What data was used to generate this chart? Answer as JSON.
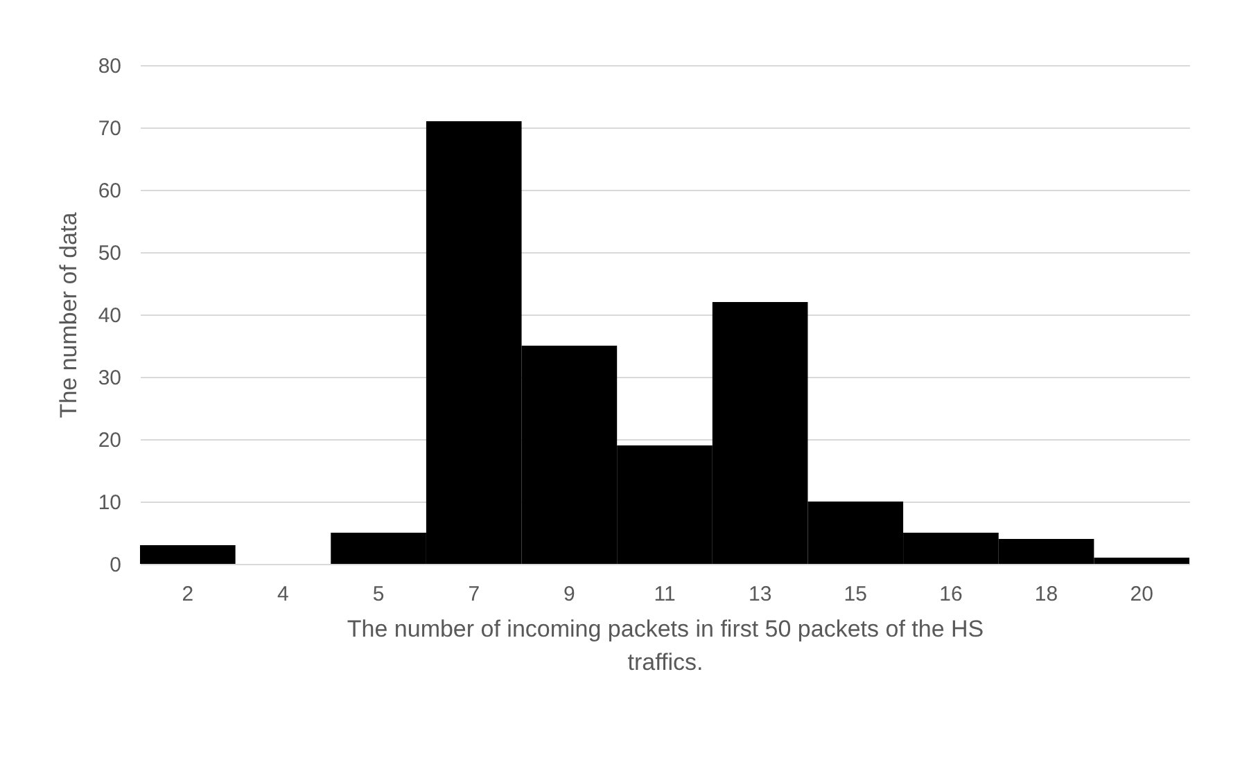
{
  "chart_data": {
    "type": "bar",
    "xlabel": "The number of incoming packets in first 50 packets of the HS traffics.",
    "ylabel": "The number of data",
    "categories": [
      "2",
      "4",
      "5",
      "7",
      "9",
      "11",
      "13",
      "15",
      "16",
      "18",
      "20"
    ],
    "values": [
      3,
      0,
      5,
      71,
      35,
      19,
      42,
      10,
      5,
      4,
      1
    ],
    "color": "#000000",
    "ylim": [
      0,
      80
    ],
    "yticks": [
      0,
      10,
      20,
      30,
      40,
      50,
      60,
      70,
      80
    ],
    "grid": "y"
  }
}
